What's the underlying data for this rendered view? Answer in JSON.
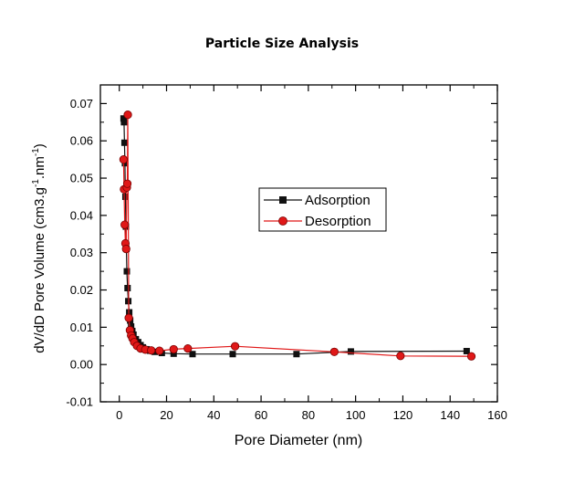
{
  "chart_data": {
    "type": "line",
    "title": "Particle Size Analysis",
    "xlabel": "Pore Diameter (nm)",
    "ylabel_main": "dV/dD Pore Volume (cm3.g",
    "ylabel_sup1": "-1",
    "ylabel_mid": ".nm",
    "ylabel_sup2": "-1",
    "ylabel_end": ")",
    "xlim": [
      -8,
      160
    ],
    "ylim": [
      -0.01,
      0.075
    ],
    "xticks": [
      0,
      20,
      40,
      60,
      80,
      100,
      120,
      140,
      160
    ],
    "xtick_labels": [
      "0",
      "20",
      "40",
      "60",
      "80",
      "100",
      "120",
      "140",
      "160"
    ],
    "yticks": [
      -0.01,
      0.0,
      0.01,
      0.02,
      0.03,
      0.04,
      0.05,
      0.06,
      0.07
    ],
    "ytick_labels": [
      "-0.01",
      "0.00",
      "0.01",
      "0.02",
      "0.03",
      "0.04",
      "0.05",
      "0.06",
      "0.07"
    ],
    "grid": false,
    "legend_position": "center-right",
    "series": [
      {
        "name": "Adsorption",
        "color": "#111111",
        "marker": "square",
        "x": [
          1.8,
          2.0,
          2.2,
          2.4,
          2.6,
          2.8,
          3.0,
          3.2,
          3.5,
          3.8,
          4.2,
          4.6,
          5.0,
          5.5,
          6.0,
          7.0,
          8.0,
          9.0,
          10.0,
          11.5,
          13.0,
          15.0,
          18.0,
          23.0,
          31.0,
          48.0,
          75.0,
          98.0,
          147.0
        ],
        "y": [
          0.066,
          0.065,
          0.0595,
          0.054,
          0.045,
          0.037,
          0.031,
          0.025,
          0.0205,
          0.017,
          0.014,
          0.0118,
          0.0102,
          0.009,
          0.008,
          0.0068,
          0.006,
          0.0052,
          0.0046,
          0.0041,
          0.0037,
          0.0034,
          0.0031,
          0.0029,
          0.0028,
          0.0028,
          0.0028,
          0.0035,
          0.0036
        ]
      },
      {
        "name": "Desorption",
        "color": "#e01818",
        "marker": "circle",
        "x": [
          1.8,
          2.0,
          2.3,
          2.6,
          2.9,
          3.2,
          3.4,
          3.6,
          4.0,
          4.5,
          5.0,
          5.6,
          6.3,
          7.5,
          9.0,
          11.0,
          13.5,
          17.0,
          23.0,
          29.0,
          49.0,
          91.0,
          119.0,
          149.0
        ],
        "y": [
          0.055,
          0.047,
          0.0375,
          0.0325,
          0.031,
          0.0475,
          0.0485,
          0.067,
          0.0125,
          0.0092,
          0.0078,
          0.007,
          0.006,
          0.005,
          0.0043,
          0.004,
          0.0038,
          0.0037,
          0.0041,
          0.0043,
          0.0049,
          0.0034,
          0.0023,
          0.0022
        ]
      }
    ]
  }
}
